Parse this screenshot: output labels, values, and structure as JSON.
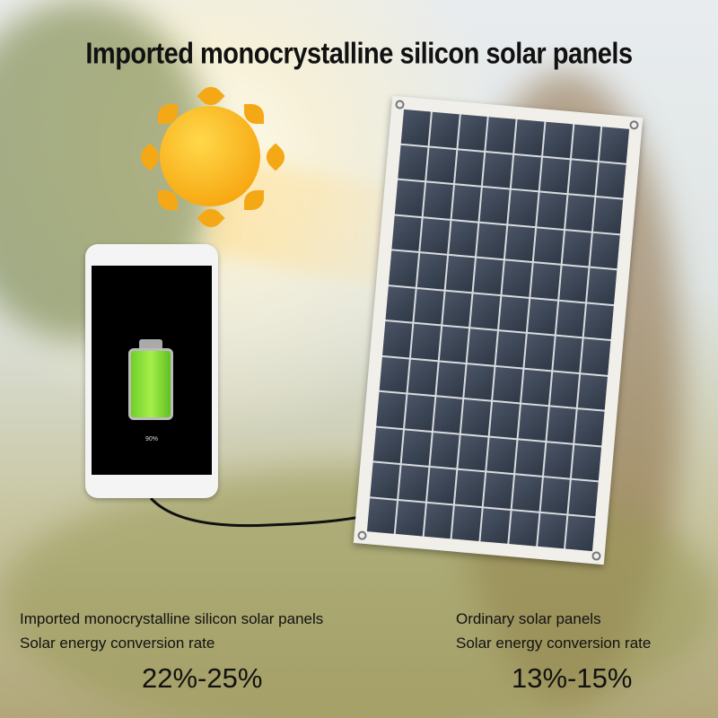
{
  "title": "Imported monocrystalline silicon solar panels",
  "phone": {
    "battery_percent": "90%"
  },
  "left": {
    "line1": "Imported monocrystalline silicon solar panels",
    "line2": "Solar energy conversion rate",
    "rate": "22%-25%"
  },
  "right": {
    "line1": "Ordinary solar panels",
    "line2": "Solar energy conversion rate",
    "rate": "13%-15%"
  },
  "colors": {
    "sun": "#f7a812",
    "battery": "#7fd82e",
    "panel_cell": "#3a4453"
  }
}
